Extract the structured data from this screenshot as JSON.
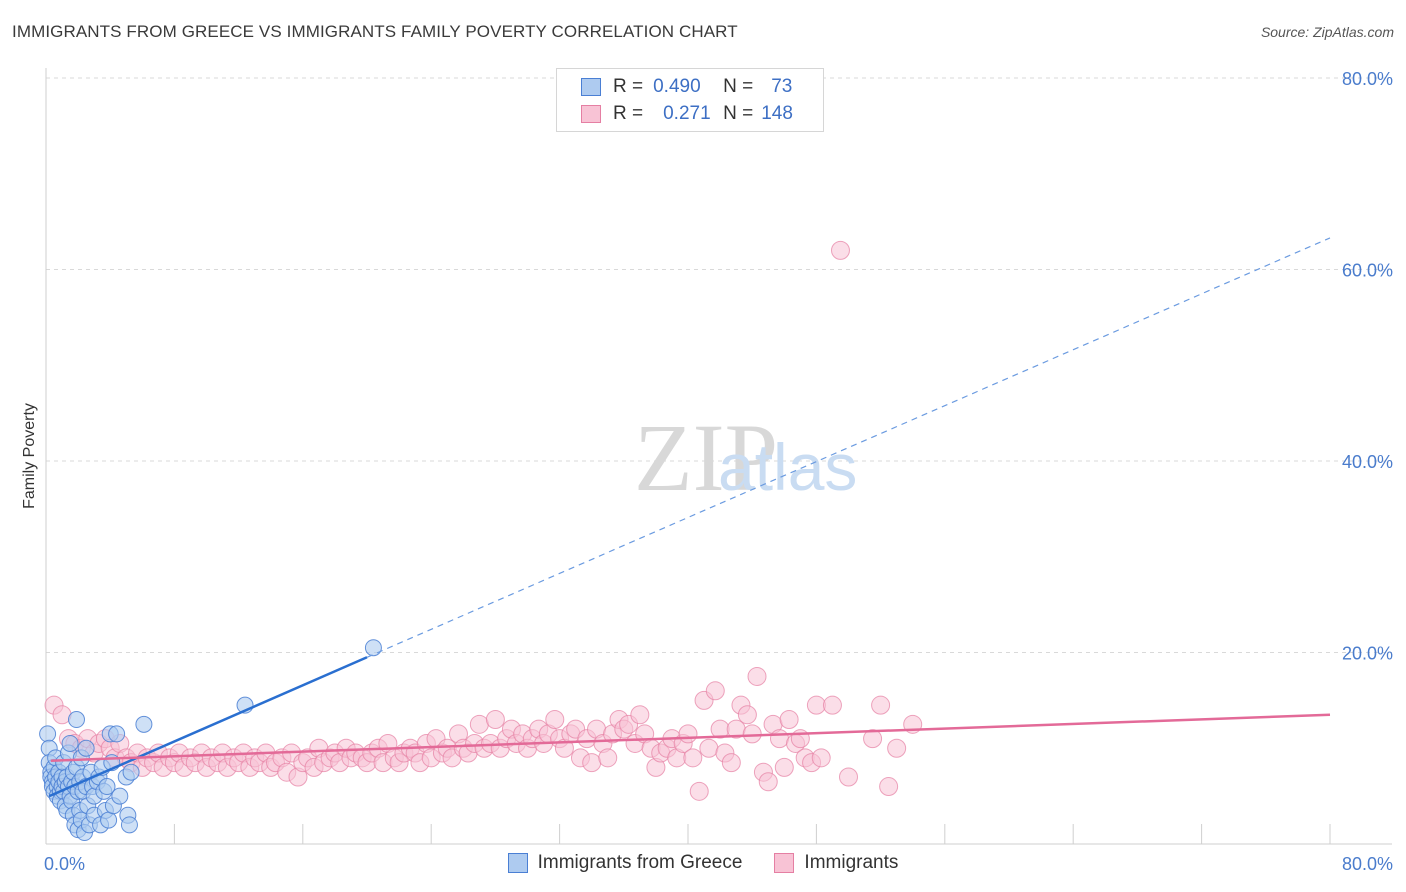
{
  "title": "IMMIGRANTS FROM GREECE VS IMMIGRANTS FAMILY POVERTY CORRELATION CHART",
  "source": "Source: ZipAtlas.com",
  "watermark": {
    "zip": "ZIP",
    "atlas": "atlas"
  },
  "legend": {
    "series1": {
      "r_label": "R =",
      "r_value": "0.490",
      "n_label": "N =",
      "n_value": "73"
    },
    "series2": {
      "r_label": "R =",
      "r_value": "0.271",
      "n_label": "N =",
      "n_value": "148"
    }
  },
  "colors": {
    "blue": "#4a7fd4",
    "blue_fill": "#aecbf0",
    "pink": "#e57fa3",
    "pink_fill": "#f8c3d5",
    "tick": "#4a7ccc",
    "grid": "#d9d9d9"
  },
  "chart_data": {
    "type": "scatter",
    "title": "IMMIGRANTS FROM GREECE VS IMMIGRANTS FAMILY POVERTY CORRELATION CHART",
    "xlabel": "",
    "ylabel": "Family Poverty",
    "xlim": [
      0,
      80
    ],
    "ylim": [
      0,
      80
    ],
    "x_tick_labels": [
      "0.0%",
      "80.0%"
    ],
    "y_tick_labels": [
      "20.0%",
      "40.0%",
      "60.0%",
      "80.0%"
    ],
    "y_ticks": [
      20,
      40,
      60,
      80
    ],
    "legend_position": "bottom",
    "series": [
      {
        "name": "Immigrants from Greece",
        "r": 0.49,
        "n": 73,
        "trend": {
          "x0": 0.2,
          "y0": 5.0,
          "x1": 20.0,
          "y1": 19.5,
          "dash_to_x": 80,
          "dash_to_y": 63.3
        },
        "points": [
          [
            0.1,
            11.5
          ],
          [
            0.2,
            10.0
          ],
          [
            0.2,
            8.5
          ],
          [
            0.3,
            7.5
          ],
          [
            0.3,
            7.0
          ],
          [
            0.4,
            6.5
          ],
          [
            0.4,
            6.0
          ],
          [
            0.5,
            5.5
          ],
          [
            0.5,
            8.0
          ],
          [
            0.6,
            7.0
          ],
          [
            0.6,
            9.0
          ],
          [
            0.7,
            6.0
          ],
          [
            0.7,
            5.0
          ],
          [
            0.8,
            7.5
          ],
          [
            0.8,
            6.5
          ],
          [
            0.9,
            5.5
          ],
          [
            0.9,
            4.5
          ],
          [
            1.0,
            7.0
          ],
          [
            1.0,
            6.0
          ],
          [
            1.1,
            5.5
          ],
          [
            1.1,
            8.5
          ],
          [
            1.2,
            6.5
          ],
          [
            1.2,
            4.0
          ],
          [
            1.3,
            7.0
          ],
          [
            1.3,
            3.5
          ],
          [
            1.4,
            6.0
          ],
          [
            1.4,
            9.5
          ],
          [
            1.5,
            10.5
          ],
          [
            1.5,
            5.0
          ],
          [
            1.6,
            6.5
          ],
          [
            1.6,
            4.5
          ],
          [
            1.7,
            7.5
          ],
          [
            1.7,
            3.0
          ],
          [
            1.8,
            6.0
          ],
          [
            1.8,
            2.0
          ],
          [
            1.9,
            13.0
          ],
          [
            1.9,
            8.0
          ],
          [
            2.0,
            5.5
          ],
          [
            2.0,
            1.5
          ],
          [
            2.1,
            6.5
          ],
          [
            2.1,
            3.5
          ],
          [
            2.2,
            9.0
          ],
          [
            2.2,
            2.5
          ],
          [
            2.3,
            7.0
          ],
          [
            2.3,
            5.5
          ],
          [
            2.4,
            1.2
          ],
          [
            2.5,
            6.0
          ],
          [
            2.5,
            10.0
          ],
          [
            2.6,
            4.0
          ],
          [
            2.7,
            2.0
          ],
          [
            2.8,
            7.5
          ],
          [
            2.9,
            6.0
          ],
          [
            3.0,
            5.0
          ],
          [
            3.0,
            3.0
          ],
          [
            3.2,
            6.5
          ],
          [
            3.3,
            7.0
          ],
          [
            3.4,
            2.0
          ],
          [
            3.5,
            8.0
          ],
          [
            3.6,
            5.5
          ],
          [
            3.7,
            3.5
          ],
          [
            3.8,
            6.0
          ],
          [
            3.9,
            2.5
          ],
          [
            4.0,
            11.5
          ],
          [
            4.1,
            8.5
          ],
          [
            4.2,
            4.0
          ],
          [
            4.4,
            11.5
          ],
          [
            4.6,
            5.0
          ],
          [
            5.0,
            7.0
          ],
          [
            5.1,
            3.0
          ],
          [
            5.3,
            7.5
          ],
          [
            5.2,
            2.0
          ],
          [
            6.1,
            12.5
          ],
          [
            12.4,
            14.5
          ],
          [
            20.4,
            20.5
          ]
        ]
      },
      {
        "name": "Immigrants",
        "r": 0.271,
        "n": 148,
        "trend": {
          "x0": 0.3,
          "y0": 8.7,
          "x1": 80.0,
          "y1": 13.5
        },
        "points": [
          [
            0.5,
            14.5
          ],
          [
            1.0,
            13.5
          ],
          [
            1.4,
            11.0
          ],
          [
            1.8,
            10.5
          ],
          [
            2.2,
            10.0
          ],
          [
            2.6,
            11.0
          ],
          [
            3.0,
            9.5
          ],
          [
            3.3,
            10.5
          ],
          [
            3.7,
            11.0
          ],
          [
            4.0,
            10.0
          ],
          [
            4.3,
            9.0
          ],
          [
            4.6,
            10.5
          ],
          [
            5.0,
            9.0
          ],
          [
            5.3,
            8.5
          ],
          [
            5.7,
            9.5
          ],
          [
            6.0,
            8.0
          ],
          [
            6.3,
            9.0
          ],
          [
            6.7,
            8.5
          ],
          [
            7.0,
            9.5
          ],
          [
            7.3,
            8.0
          ],
          [
            7.7,
            9.0
          ],
          [
            8.0,
            8.5
          ],
          [
            8.3,
            9.5
          ],
          [
            8.6,
            8.0
          ],
          [
            9.0,
            9.0
          ],
          [
            9.3,
            8.5
          ],
          [
            9.7,
            9.5
          ],
          [
            10.0,
            8.0
          ],
          [
            10.3,
            9.0
          ],
          [
            10.7,
            8.5
          ],
          [
            11.0,
            9.5
          ],
          [
            11.3,
            8.0
          ],
          [
            11.7,
            9.0
          ],
          [
            12.0,
            8.5
          ],
          [
            12.3,
            9.5
          ],
          [
            12.7,
            8.0
          ],
          [
            13.0,
            9.0
          ],
          [
            13.3,
            8.5
          ],
          [
            13.7,
            9.5
          ],
          [
            14.0,
            8.0
          ],
          [
            14.3,
            8.5
          ],
          [
            14.7,
            9.0
          ],
          [
            15.0,
            7.5
          ],
          [
            15.3,
            9.5
          ],
          [
            15.7,
            7.0
          ],
          [
            16.0,
            8.5
          ],
          [
            16.3,
            9.0
          ],
          [
            16.7,
            8.0
          ],
          [
            17.0,
            10.0
          ],
          [
            17.3,
            8.5
          ],
          [
            17.7,
            9.0
          ],
          [
            18.0,
            9.5
          ],
          [
            18.3,
            8.5
          ],
          [
            18.7,
            10.0
          ],
          [
            19.0,
            9.0
          ],
          [
            19.3,
            9.5
          ],
          [
            19.7,
            9.0
          ],
          [
            20.0,
            8.5
          ],
          [
            20.3,
            9.5
          ],
          [
            20.7,
            10.0
          ],
          [
            21.0,
            8.5
          ],
          [
            21.3,
            10.5
          ],
          [
            21.7,
            9.0
          ],
          [
            22.0,
            8.5
          ],
          [
            22.3,
            9.5
          ],
          [
            22.7,
            10.0
          ],
          [
            23.0,
            9.5
          ],
          [
            23.3,
            8.5
          ],
          [
            23.7,
            10.5
          ],
          [
            24.0,
            9.0
          ],
          [
            24.3,
            11.0
          ],
          [
            24.7,
            9.5
          ],
          [
            25.0,
            10.0
          ],
          [
            25.3,
            9.0
          ],
          [
            25.7,
            11.5
          ],
          [
            26.0,
            10.0
          ],
          [
            26.3,
            9.5
          ],
          [
            26.7,
            10.5
          ],
          [
            27.0,
            12.5
          ],
          [
            27.3,
            10.0
          ],
          [
            27.7,
            10.5
          ],
          [
            28.0,
            13.0
          ],
          [
            28.3,
            10.0
          ],
          [
            28.7,
            11.0
          ],
          [
            29.0,
            12.0
          ],
          [
            29.3,
            10.5
          ],
          [
            29.7,
            11.5
          ],
          [
            30.0,
            10.0
          ],
          [
            30.3,
            11.0
          ],
          [
            30.7,
            12.0
          ],
          [
            31.0,
            10.5
          ],
          [
            31.3,
            11.5
          ],
          [
            31.7,
            13.0
          ],
          [
            32.0,
            11.0
          ],
          [
            32.3,
            10.0
          ],
          [
            32.7,
            11.5
          ],
          [
            33.0,
            12.0
          ],
          [
            33.3,
            9.0
          ],
          [
            33.7,
            11.0
          ],
          [
            34.0,
            8.5
          ],
          [
            34.3,
            12.0
          ],
          [
            34.7,
            10.5
          ],
          [
            35.0,
            9.0
          ],
          [
            35.3,
            11.5
          ],
          [
            35.7,
            13.0
          ],
          [
            36.0,
            12.0
          ],
          [
            36.3,
            12.5
          ],
          [
            36.7,
            10.5
          ],
          [
            37.0,
            13.5
          ],
          [
            37.3,
            11.5
          ],
          [
            37.7,
            10.0
          ],
          [
            38.0,
            8.0
          ],
          [
            38.3,
            9.5
          ],
          [
            38.7,
            10.0
          ],
          [
            39.0,
            11.0
          ],
          [
            39.3,
            9.0
          ],
          [
            39.7,
            10.5
          ],
          [
            40.0,
            11.5
          ],
          [
            40.3,
            9.0
          ],
          [
            40.7,
            5.5
          ],
          [
            41.0,
            15.0
          ],
          [
            41.3,
            10.0
          ],
          [
            41.7,
            16.0
          ],
          [
            42.0,
            12.0
          ],
          [
            42.3,
            9.5
          ],
          [
            42.7,
            8.5
          ],
          [
            43.0,
            12.0
          ],
          [
            43.3,
            14.5
          ],
          [
            43.7,
            13.5
          ],
          [
            44.0,
            11.5
          ],
          [
            44.3,
            17.5
          ],
          [
            44.7,
            7.5
          ],
          [
            45.0,
            6.5
          ],
          [
            45.3,
            12.5
          ],
          [
            45.7,
            11.0
          ],
          [
            46.0,
            8.0
          ],
          [
            46.3,
            13.0
          ],
          [
            46.7,
            10.5
          ],
          [
            47.0,
            11.0
          ],
          [
            47.3,
            9.0
          ],
          [
            47.7,
            8.5
          ],
          [
            48.0,
            14.5
          ],
          [
            48.3,
            9.0
          ],
          [
            49.0,
            14.5
          ],
          [
            49.5,
            62.0
          ],
          [
            50.0,
            7.0
          ],
          [
            51.5,
            11.0
          ],
          [
            52.0,
            14.5
          ],
          [
            52.5,
            6.0
          ],
          [
            53.0,
            10.0
          ],
          [
            54.0,
            12.5
          ]
        ]
      }
    ]
  }
}
